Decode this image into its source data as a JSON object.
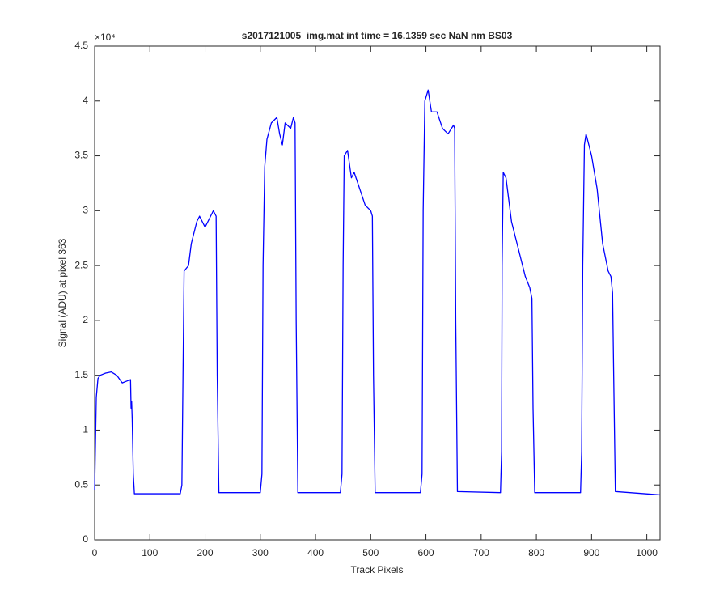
{
  "chart_data": {
    "type": "line",
    "title": "s2017121005_img.mat int time = 16.1359 sec  NaN nm BS03",
    "x_label": "Track Pixels",
    "y_label": "Signal (ADU) at pixel 363",
    "y_multiplier": "×10⁴",
    "color": "#0000ff",
    "x": [
      0,
      3,
      6,
      10,
      20,
      30,
      40,
      50,
      60,
      65,
      66,
      67,
      68,
      70,
      72,
      155,
      158,
      160,
      162,
      170,
      175,
      185,
      190,
      200,
      210,
      215,
      220,
      222,
      225,
      300,
      303,
      305,
      308,
      312,
      320,
      330,
      335,
      340,
      345,
      355,
      360,
      363,
      365,
      368,
      445,
      448,
      450,
      452,
      458,
      465,
      470,
      480,
      490,
      500,
      503,
      505,
      508,
      590,
      593,
      595,
      598,
      604,
      610,
      620,
      630,
      640,
      650,
      652,
      654,
      657,
      735,
      737,
      738,
      740,
      745,
      755,
      765,
      775,
      780,
      788,
      792,
      794,
      797,
      880,
      882,
      884,
      887,
      890,
      900,
      910,
      920,
      930,
      935,
      938,
      940,
      943,
      1024
    ],
    "values": [
      0.45,
      1.3,
      1.47,
      1.5,
      1.52,
      1.53,
      1.5,
      1.43,
      1.45,
      1.46,
      1.2,
      1.26,
      1.1,
      0.6,
      0.42,
      0.42,
      0.5,
      1.5,
      2.45,
      2.5,
      2.7,
      2.9,
      2.95,
      2.85,
      2.95,
      3.0,
      2.95,
      1.5,
      0.43,
      0.43,
      0.6,
      2.5,
      3.4,
      3.65,
      3.8,
      3.85,
      3.7,
      3.6,
      3.8,
      3.75,
      3.85,
      3.8,
      2.0,
      0.43,
      0.43,
      0.6,
      2.5,
      3.5,
      3.55,
      3.3,
      3.35,
      3.2,
      3.05,
      3.0,
      2.95,
      1.5,
      0.43,
      0.43,
      0.6,
      3.0,
      4.0,
      4.1,
      3.9,
      3.9,
      3.75,
      3.7,
      3.78,
      3.75,
      2.0,
      0.44,
      0.43,
      0.8,
      2.5,
      3.35,
      3.3,
      2.9,
      2.7,
      2.5,
      2.4,
      2.3,
      2.2,
      1.2,
      0.43,
      0.43,
      0.8,
      2.5,
      3.6,
      3.7,
      3.5,
      3.2,
      2.7,
      2.45,
      2.4,
      2.25,
      1.5,
      0.44,
      0.41
    ],
    "xlim": [
      0,
      1024
    ],
    "xticks": [
      0,
      100,
      200,
      300,
      400,
      500,
      600,
      700,
      800,
      900,
      1000
    ],
    "ylim": [
      0,
      4.5
    ],
    "yticks": [
      0,
      0.5,
      1,
      1.5,
      2,
      2.5,
      3,
      3.5,
      4,
      4.5
    ]
  }
}
